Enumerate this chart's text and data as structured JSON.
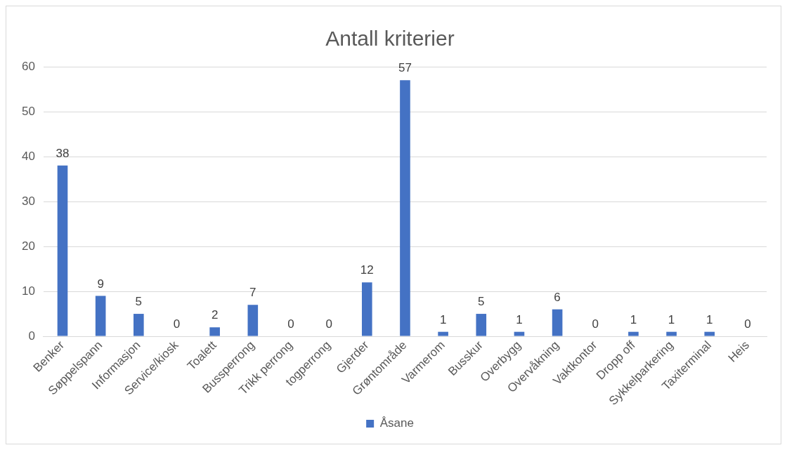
{
  "chart_data": {
    "type": "bar",
    "title": "Antall kriterier",
    "categories": [
      "Benker",
      "Søppelspann",
      "Informasjon",
      "Service/kiosk",
      "Toalett",
      "Bussperrong",
      "Trikk perrong",
      "togperrong",
      "Gjerder",
      "Grøntområde",
      "Varmerom",
      "Busskur",
      "Overbygg",
      "Overvåkning",
      "Vaktkontor",
      "Dropp off",
      "Sykkelparkering",
      "Taxiterminal",
      "Heis"
    ],
    "series": [
      {
        "name": "Åsane",
        "color": "#4472c4",
        "values": [
          38,
          9,
          5,
          0,
          2,
          7,
          0,
          0,
          12,
          57,
          1,
          5,
          1,
          6,
          0,
          1,
          1,
          1,
          0
        ]
      }
    ],
    "ylim": [
      0,
      60
    ],
    "yticks": [
      0,
      10,
      20,
      30,
      40,
      50,
      60
    ],
    "grid": "y",
    "legend": "bottom",
    "data_labels": true
  }
}
